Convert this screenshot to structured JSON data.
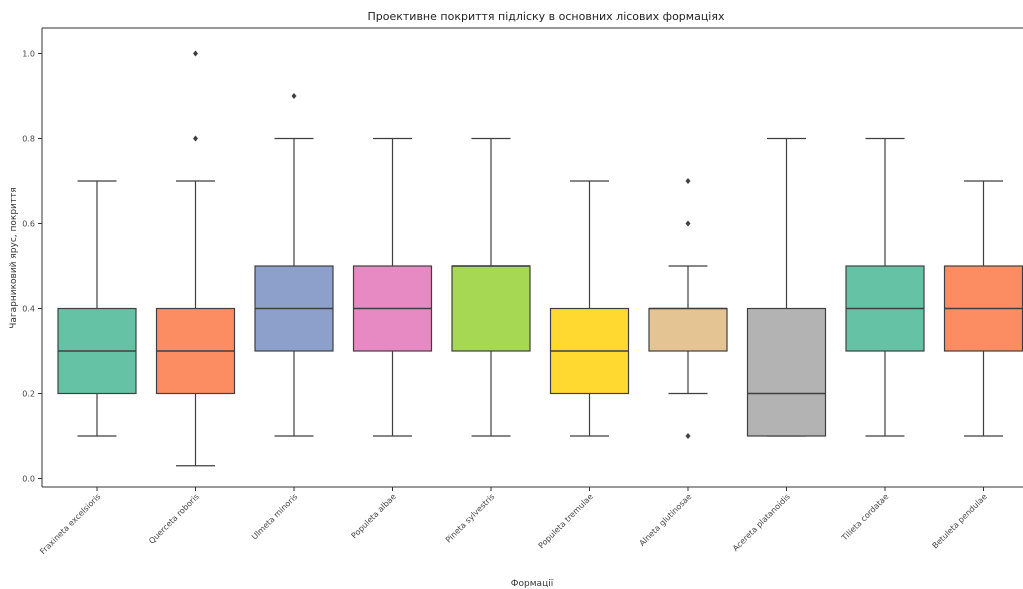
{
  "chart_data": {
    "type": "box",
    "title": "Проективне покриття підліску в основних лісових формаціях",
    "xlabel": "Формації",
    "ylabel": "Чагарниковий ярус, покриття",
    "ylim": [
      -0.02,
      1.06
    ],
    "yticks": [
      "0.0",
      "0.2",
      "0.4",
      "0.6",
      "0.8",
      "1.0"
    ],
    "ytick_values": [
      0.0,
      0.2,
      0.4,
      0.6,
      0.8,
      1.0
    ],
    "grid": false,
    "categories": [
      "Fraxineta excelsioris",
      "Querceta roboris",
      "Ulmeta minoris",
      "Populeta albae",
      "Pineta sylvestris",
      "Populeta tremulae",
      "Alneta glutinosae",
      "Acereta platanoidis",
      "Tilieta cordatae",
      "Betuleta pendulae"
    ],
    "boxes": [
      {
        "whislo": 0.1,
        "q1": 0.2,
        "med": 0.3,
        "q3": 0.4,
        "whishi": 0.7,
        "fliers": [],
        "color": "#66c2a5"
      },
      {
        "whislo": 0.03,
        "q1": 0.2,
        "med": 0.3,
        "q3": 0.4,
        "whishi": 0.7,
        "fliers": [
          0.8,
          1.0
        ],
        "color": "#fc8d62"
      },
      {
        "whislo": 0.1,
        "q1": 0.3,
        "med": 0.4,
        "q3": 0.5,
        "whishi": 0.8,
        "fliers": [
          0.9
        ],
        "color": "#8da0cb"
      },
      {
        "whislo": 0.1,
        "q1": 0.3,
        "med": 0.4,
        "q3": 0.5,
        "whishi": 0.8,
        "fliers": [],
        "color": "#e78ac3"
      },
      {
        "whislo": 0.1,
        "q1": 0.3,
        "med": 0.5,
        "q3": 0.5,
        "whishi": 0.8,
        "fliers": [],
        "color": "#a6d854"
      },
      {
        "whislo": 0.1,
        "q1": 0.2,
        "med": 0.3,
        "q3": 0.4,
        "whishi": 0.7,
        "fliers": [],
        "color": "#ffd92f"
      },
      {
        "whislo": 0.2,
        "q1": 0.3,
        "med": 0.4,
        "q3": 0.4,
        "whishi": 0.5,
        "fliers": [
          0.1,
          0.6,
          0.7
        ],
        "color": "#e5c494"
      },
      {
        "whislo": 0.1,
        "q1": 0.1,
        "med": 0.2,
        "q3": 0.4,
        "whishi": 0.8,
        "fliers": [],
        "color": "#b3b3b3"
      },
      {
        "whislo": 0.1,
        "q1": 0.3,
        "med": 0.4,
        "q3": 0.5,
        "whishi": 0.8,
        "fliers": [],
        "color": "#66c2a5"
      },
      {
        "whislo": 0.1,
        "q1": 0.3,
        "med": 0.4,
        "q3": 0.5,
        "whishi": 0.7,
        "fliers": [],
        "color": "#fc8d62"
      }
    ]
  }
}
